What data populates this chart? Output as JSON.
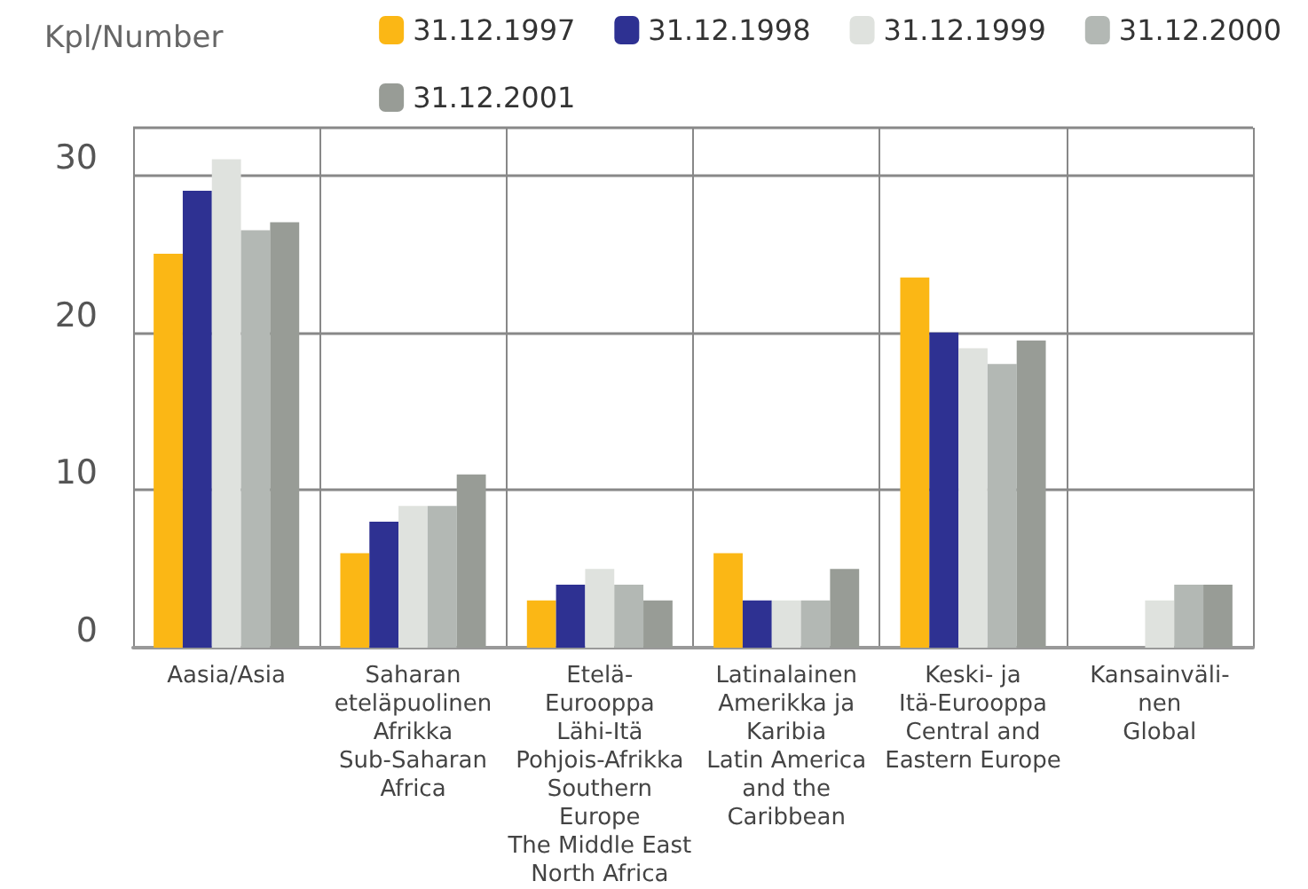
{
  "chart_data": {
    "type": "bar",
    "ylabel": "Kpl/Number",
    "categories": [
      "Aasia/Asia",
      "Saharan\neteläpuolinen\nAfrikka\nSub-Saharan\nAfrica",
      "Etelä-\nEurooppa\nLähi-Itä\nPohjois-Afrikka\nSouthern\nEurope\nThe Middle East\nNorth Africa",
      "Latinalainen\nAmerikka ja\nKaribia\nLatin America\nand the\nCaribbean",
      "Keski- ja\nItä-Eurooppa\nCentral and\nEastern Europe",
      "Kansainväli-\nnen\nGlobal"
    ],
    "series": [
      {
        "name": "31.12.1997",
        "color": "#fbb715",
        "values": [
          25,
          6,
          3,
          6,
          23.5,
          null
        ]
      },
      {
        "name": "31.12.1998",
        "color": "#2e3192",
        "values": [
          29,
          8,
          4,
          3,
          20,
          null
        ]
      },
      {
        "name": "31.12.1999",
        "color": "#dfe2de",
        "values": [
          31,
          9,
          5,
          3,
          19,
          3
        ]
      },
      {
        "name": "31.12.2000",
        "color": "#b3b8b4",
        "values": [
          26.5,
          9,
          4,
          3,
          18,
          4
        ]
      },
      {
        "name": "31.12.2001",
        "color": "#989c96",
        "values": [
          27,
          11,
          3,
          5,
          19.5,
          4
        ]
      }
    ],
    "ylim": [
      0,
      33
    ],
    "yticks": [
      0,
      10,
      20,
      30
    ],
    "grid": true,
    "legend": "top right"
  }
}
